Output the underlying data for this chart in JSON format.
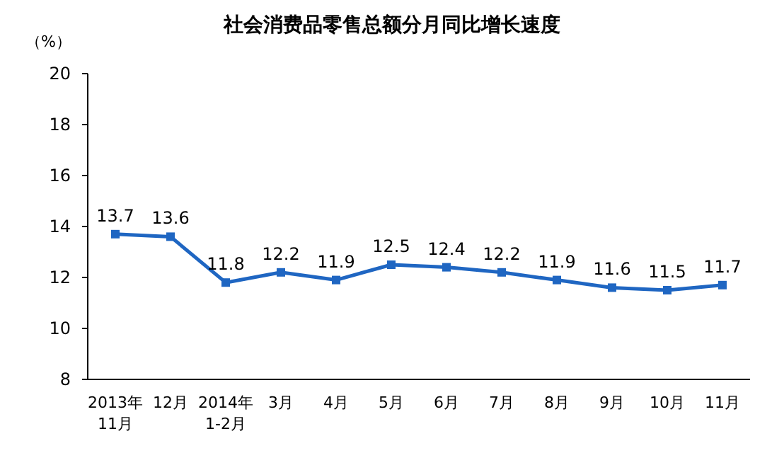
{
  "chart_data": {
    "type": "line",
    "title": "社会消费品零售总额分月同比增长速度",
    "ylabel": "（%）",
    "categories": [
      "2013年\n11月",
      "12月",
      "2014年\n1-2月",
      "3月",
      "4月",
      "5月",
      "6月",
      "7月",
      "8月",
      "9月",
      "10月",
      "11月"
    ],
    "series": [
      {
        "color": "#1f66c2",
        "values": [
          13.7,
          13.6,
          11.8,
          12.2,
          11.9,
          12.5,
          12.4,
          12.2,
          11.9,
          11.6,
          11.5,
          11.7
        ]
      }
    ],
    "ylim": [
      8,
      20
    ],
    "yticks": [
      8,
      10,
      12,
      14,
      16,
      18,
      20
    ],
    "data_labels": true,
    "marker": "square",
    "line_style": "solid",
    "grid": false
  }
}
